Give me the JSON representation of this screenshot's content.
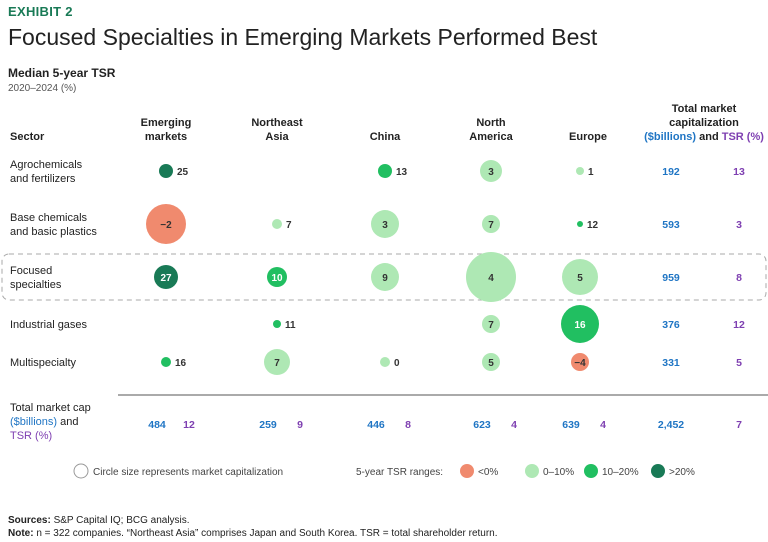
{
  "header": {
    "exhibit": "EXHIBIT 2",
    "title": "Focused Specialties in Emerging Markets Performed Best",
    "subtitle": "Median 5-year TSR",
    "period": "2020–2024 (%)"
  },
  "chart_data": {
    "type": "bubble-table",
    "row_header": "Sector",
    "columns": [
      {
        "label": [
          "Emerging",
          "markets"
        ]
      },
      {
        "label": [
          "Northeast",
          "Asia"
        ]
      },
      {
        "label": [
          "China"
        ]
      },
      {
        "label": [
          "North",
          "America"
        ]
      },
      {
        "label": [
          "Europe"
        ]
      }
    ],
    "total_column_header": [
      "Total market",
      "capitalization",
      "($billions)",
      "and",
      "TSR",
      "(%)"
    ],
    "rows": [
      {
        "label": [
          "Agrochemicals",
          "and fertilizers"
        ],
        "tsr": [
          25,
          null,
          13,
          3,
          1
        ],
        "total_cap": "192",
        "total_tsr": "13"
      },
      {
        "label": [
          "Base chemicals",
          "and basic plastics"
        ],
        "tsr": [
          -2,
          7,
          3,
          7,
          12
        ],
        "total_cap": "593",
        "total_tsr": "3"
      },
      {
        "label": [
          "Focused",
          "specialties"
        ],
        "tsr": [
          27,
          10,
          9,
          4,
          5
        ],
        "total_cap": "959",
        "total_tsr": "8",
        "highlighted": true
      },
      {
        "label": [
          "Industrial gases"
        ],
        "tsr": [
          null,
          11,
          null,
          7,
          16
        ],
        "total_cap": "376",
        "total_tsr": "12"
      },
      {
        "label": [
          "Multispecialty"
        ],
        "tsr": [
          16,
          7,
          0,
          5,
          -4
        ],
        "total_cap": "331",
        "total_tsr": "5"
      }
    ],
    "bubble_radius": [
      [
        7,
        null,
        7,
        11,
        4
      ],
      [
        20,
        5,
        14,
        9,
        3
      ],
      [
        12,
        10,
        14,
        25,
        18
      ],
      [
        null,
        4,
        null,
        9,
        19
      ],
      [
        5,
        13,
        5,
        9,
        9
      ]
    ],
    "totals": {
      "label": [
        "Total market cap",
        "($billions)",
        "and",
        "TSR (%)"
      ],
      "cap": [
        "484",
        "259",
        "446",
        "623",
        "639"
      ],
      "tsr": [
        "12",
        "9",
        "8",
        "4",
        "4"
      ],
      "grand_cap": "2,452",
      "grand_tsr": "7"
    },
    "legend": {
      "size_note": "Circle size represents market capitalization",
      "ranges_title": "5-year TSR ranges:",
      "ranges": [
        {
          "label": "<0%",
          "color": "#f08a6e"
        },
        {
          "label": "0–10%",
          "color": "#aee8b4"
        },
        {
          "label": "10–20%",
          "color": "#21bf61"
        },
        {
          "label": ">20%",
          "color": "#197a56"
        }
      ]
    },
    "colors": {
      "cap_blue": "#1f75c4",
      "tsr_purple": "#7e3fb1",
      "header_green": "#197a56"
    }
  },
  "footer": {
    "sources_label": "Sources:",
    "sources": "S&P Capital IQ; BCG analysis.",
    "note_label": "Note:",
    "note": "n = 322 companies. “Northeast Asia” comprises Japan and South Korea. TSR = total shareholder return."
  }
}
